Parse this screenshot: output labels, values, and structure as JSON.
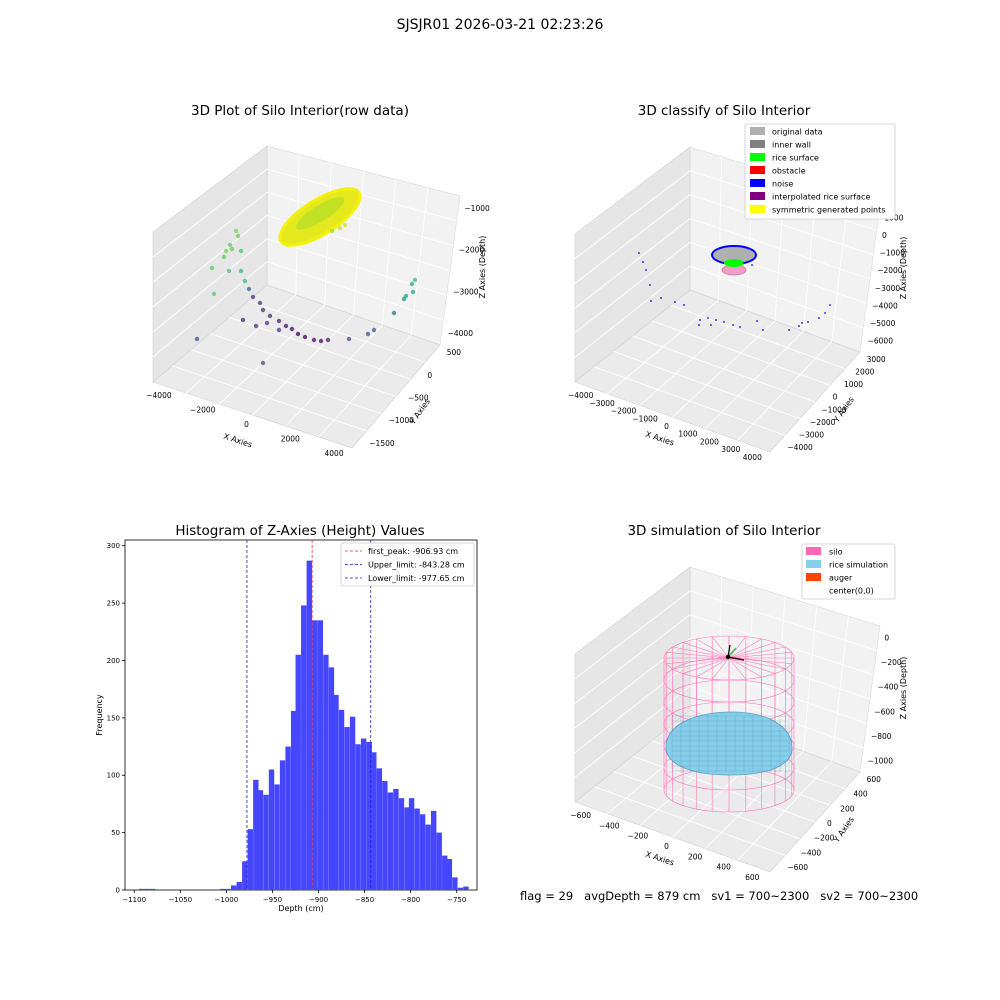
{
  "suptitle": "SJSJR01 2026-03-21 02:23:26",
  "footer": {
    "flag": "flag = 29",
    "avg_depth": "avgDepth = 879 cm",
    "sv1": "sv1 = 700~2300",
    "sv2": "sv2 = 700~2300"
  },
  "chart_data": [
    {
      "type": "scatter",
      "projection": "3d",
      "title": "3D Plot of Silo Interior(row data)",
      "xlabel": "X Axies",
      "ylabel": "Y Axies",
      "zlabel": "Z Axies (Depth)",
      "x_ticks": [
        "−4000",
        "−2000",
        "0",
        "2000",
        "4000"
      ],
      "y_ticks": [
        "−1500",
        "−1000",
        "−500",
        "0",
        "500"
      ],
      "z_ticks": [
        "−1000",
        "−2000",
        "−3000",
        "−4000"
      ],
      "colormap": "viridis",
      "grid": true
    },
    {
      "type": "scatter",
      "projection": "3d",
      "title": "3D classify of Silo Interior",
      "xlabel": "X Axies",
      "ylabel": "Y Axies",
      "zlabel": "Z Axies (Depth)",
      "x_ticks": [
        "−4000",
        "−3000",
        "−2000",
        "−1000",
        "0",
        "1000",
        "2000",
        "3000",
        "4000"
      ],
      "y_ticks": [
        "−4000",
        "−3000",
        "−2000",
        "−1000",
        "0",
        "1000",
        "2000",
        "3000"
      ],
      "z_ticks": [
        "1000",
        "0",
        "−1000",
        "−2000",
        "−3000",
        "−4000",
        "−5000",
        "−6000"
      ],
      "legend": [
        {
          "label": "original data",
          "color": "#b0b0b0"
        },
        {
          "label": "inner wall",
          "color": "#808080"
        },
        {
          "label": "rice surface",
          "color": "#00ff00"
        },
        {
          "label": "obstacle",
          "color": "#ff0000"
        },
        {
          "label": "noise",
          "color": "#0000ff"
        },
        {
          "label": "interpolated rice surface",
          "color": "#800080"
        },
        {
          "label": "symmetric generated points",
          "color": "#ffff00"
        }
      ],
      "legend_position": "top-right",
      "grid": true
    },
    {
      "type": "bar",
      "title": "Histogram of Z-Axies (Height) Values",
      "xlabel": "Depth (cm)",
      "ylabel": "Frequency",
      "xlim": [
        -1110,
        -728
      ],
      "ylim": [
        0,
        305
      ],
      "x_ticks": [
        -1100,
        -1050,
        -1000,
        -950,
        -900,
        -850,
        -800,
        -750
      ],
      "y_ticks": [
        0,
        50,
        100,
        150,
        200,
        250,
        300
      ],
      "bin_width": 5.85,
      "bars": [
        {
          "x": -1092,
          "v": 1
        },
        {
          "x": -1086,
          "v": 1
        },
        {
          "x": -1080,
          "v": 1
        },
        {
          "x": -1004,
          "v": 1
        },
        {
          "x": -998,
          "v": 1
        },
        {
          "x": -992,
          "v": 4
        },
        {
          "x": -986,
          "v": 7
        },
        {
          "x": -980,
          "v": 25
        },
        {
          "x": -974,
          "v": 53
        },
        {
          "x": -968,
          "v": 96
        },
        {
          "x": -963,
          "v": 87
        },
        {
          "x": -957,
          "v": 83
        },
        {
          "x": -951,
          "v": 105
        },
        {
          "x": -945,
          "v": 92
        },
        {
          "x": -939,
          "v": 113
        },
        {
          "x": -933,
          "v": 125
        },
        {
          "x": -927,
          "v": 156
        },
        {
          "x": -922,
          "v": 205
        },
        {
          "x": -916,
          "v": 248
        },
        {
          "x": -910,
          "v": 287
        },
        {
          "x": -904,
          "v": 235
        },
        {
          "x": -898,
          "v": 235
        },
        {
          "x": -892,
          "v": 205
        },
        {
          "x": -886,
          "v": 194
        },
        {
          "x": -881,
          "v": 170
        },
        {
          "x": -875,
          "v": 157
        },
        {
          "x": -869,
          "v": 142
        },
        {
          "x": -863,
          "v": 151
        },
        {
          "x": -857,
          "v": 127
        },
        {
          "x": -851,
          "v": 132
        },
        {
          "x": -845,
          "v": 129
        },
        {
          "x": -840,
          "v": 120
        },
        {
          "x": -834,
          "v": 106
        },
        {
          "x": -828,
          "v": 95
        },
        {
          "x": -822,
          "v": 85
        },
        {
          "x": -816,
          "v": 88
        },
        {
          "x": -810,
          "v": 80
        },
        {
          "x": -804,
          "v": 72
        },
        {
          "x": -799,
          "v": 80
        },
        {
          "x": -793,
          "v": 71
        },
        {
          "x": -787,
          "v": 66
        },
        {
          "x": -781,
          "v": 57
        },
        {
          "x": -775,
          "v": 69
        },
        {
          "x": -769,
          "v": 50
        },
        {
          "x": -763,
          "v": 30
        },
        {
          "x": -758,
          "v": 27
        },
        {
          "x": -752,
          "v": 11
        },
        {
          "x": -746,
          "v": 2
        },
        {
          "x": -740,
          "v": 3
        }
      ],
      "bar_color": "#4646ff",
      "lines": [
        {
          "label": "first_peak: -906.93 cm",
          "x": -906.93,
          "color": "#e03030"
        },
        {
          "label": "Upper_limit: -843.28 cm",
          "x": -843.28,
          "color": "#1f1fb8"
        },
        {
          "label": "Lower_limit: -977.65 cm",
          "x": -977.65,
          "color": "#1f1fb8"
        }
      ],
      "legend_position": "top-right"
    },
    {
      "type": "scatter",
      "projection": "3d",
      "title": "3D simulation of Silo Interior",
      "xlabel": "X Axies",
      "ylabel": "Y Axies",
      "zlabel": "Z Axies (Depth)",
      "x_ticks": [
        "−600",
        "−400",
        "−200",
        "0",
        "200",
        "400",
        "600"
      ],
      "y_ticks": [
        "−600",
        "−400",
        "−200",
        "0",
        "200",
        "400",
        "600"
      ],
      "z_ticks": [
        "0",
        "−200",
        "−400",
        "−600",
        "−800",
        "−1000"
      ],
      "legend": [
        {
          "label": "silo",
          "color": "#ff69b4"
        },
        {
          "label": "rice simulation",
          "color": "#87ceeb"
        },
        {
          "label": "auger",
          "color": "#ff4500"
        },
        {
          "label": "center(0,0)",
          "color": "none"
        }
      ],
      "legend_position": "top-right",
      "grid": true
    }
  ]
}
